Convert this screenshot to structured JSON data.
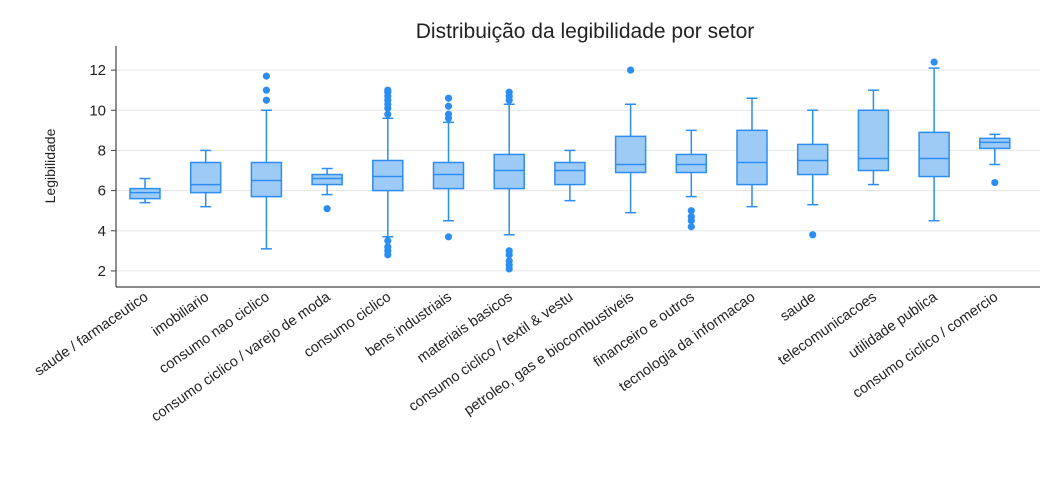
{
  "chart_data": {
    "type": "box",
    "title": "Distribuição da legibilidade por setor",
    "xlabel": "",
    "ylabel": "Legibilidade",
    "ylim": [
      1.2,
      13.2
    ],
    "yticks": [
      2,
      4,
      6,
      8,
      10,
      12
    ],
    "grid": "horizontal",
    "colors": {
      "box_fill": "#9ecbf5",
      "box_edge": "#2b8ef0",
      "outlier": "#2b8ef0",
      "grid": "#e6e6e6",
      "axis": "#444444"
    },
    "categories": [
      "saude / farmaceutico",
      "imobiliario",
      "consumo nao ciclico",
      "consumo ciclico / varejo de moda",
      "consumo ciclico",
      "bens industriais",
      "materiais basicos",
      "consumo ciclico / textil & vestu",
      "petroleo, gas e biocombustiveis",
      "financeiro e outros",
      "tecnologia da informacao",
      "saude",
      "telecomunicacoes",
      "utilidade publica",
      "consumo ciclico / comercio"
    ],
    "boxes": [
      {
        "min": 5.4,
        "q1": 5.6,
        "median": 5.9,
        "q3": 6.1,
        "max": 6.6,
        "outliers": []
      },
      {
        "min": 5.2,
        "q1": 5.9,
        "median": 6.3,
        "q3": 7.4,
        "max": 8.0,
        "outliers": []
      },
      {
        "min": 3.1,
        "q1": 5.7,
        "median": 6.5,
        "q3": 7.4,
        "max": 10.0,
        "outliers": [
          10.5,
          11.0,
          11.7
        ]
      },
      {
        "min": 5.8,
        "q1": 6.3,
        "median": 6.6,
        "q3": 6.8,
        "max": 7.1,
        "outliers": [
          5.1
        ]
      },
      {
        "min": 3.7,
        "q1": 6.0,
        "median": 6.7,
        "q3": 7.5,
        "max": 9.6,
        "outliers": [
          2.8,
          3.0,
          3.2,
          3.5,
          9.8,
          10.1,
          10.3,
          10.5,
          10.7,
          10.9,
          11.0
        ]
      },
      {
        "min": 4.5,
        "q1": 6.1,
        "median": 6.8,
        "q3": 7.4,
        "max": 9.4,
        "outliers": [
          3.7,
          9.6,
          9.8,
          10.2,
          10.6
        ]
      },
      {
        "min": 3.8,
        "q1": 6.1,
        "median": 7.0,
        "q3": 7.8,
        "max": 10.3,
        "outliers": [
          2.1,
          2.3,
          2.5,
          2.8,
          3.0,
          10.5,
          10.7,
          10.9
        ]
      },
      {
        "min": 5.5,
        "q1": 6.3,
        "median": 7.0,
        "q3": 7.4,
        "max": 8.0,
        "outliers": []
      },
      {
        "min": 4.9,
        "q1": 6.9,
        "median": 7.3,
        "q3": 8.7,
        "max": 10.3,
        "outliers": [
          12.0
        ]
      },
      {
        "min": 5.7,
        "q1": 6.9,
        "median": 7.3,
        "q3": 7.8,
        "max": 9.0,
        "outliers": [
          4.2,
          4.5,
          4.7,
          5.0
        ]
      },
      {
        "min": 5.2,
        "q1": 6.3,
        "median": 7.4,
        "q3": 9.0,
        "max": 10.6,
        "outliers": []
      },
      {
        "min": 5.3,
        "q1": 6.8,
        "median": 7.5,
        "q3": 8.3,
        "max": 10.0,
        "outliers": [
          3.8
        ]
      },
      {
        "min": 6.3,
        "q1": 7.0,
        "median": 7.6,
        "q3": 10.0,
        "max": 11.0,
        "outliers": []
      },
      {
        "min": 4.5,
        "q1": 6.7,
        "median": 7.6,
        "q3": 8.9,
        "max": 12.1,
        "outliers": [
          12.4
        ]
      },
      {
        "min": 7.3,
        "q1": 8.1,
        "median": 8.4,
        "q3": 8.6,
        "max": 8.8,
        "outliers": [
          6.4
        ]
      }
    ]
  }
}
